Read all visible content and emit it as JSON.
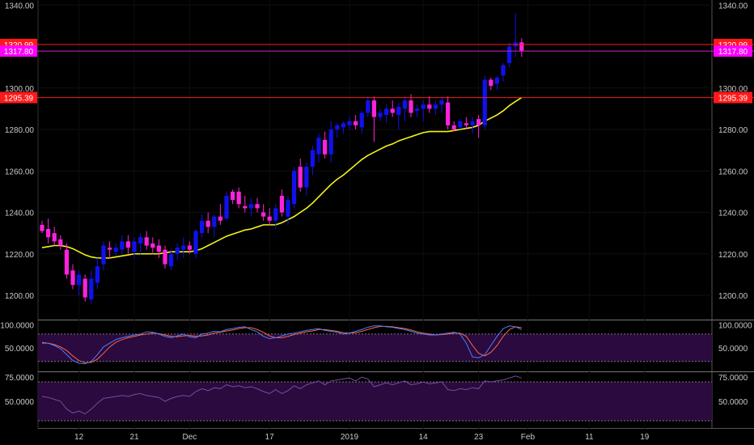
{
  "chart_data": {
    "type": "candlestick",
    "price_axis": {
      "ylim": [
        1185,
        1342
      ],
      "ticks": [
        "1200.00",
        "1220.00",
        "1240.00",
        "1260.00",
        "1280.00",
        "1300.00",
        "1340.00"
      ],
      "tick_values": [
        1200,
        1220,
        1240,
        1260,
        1280,
        1300,
        1340
      ]
    },
    "x_axis": {
      "labels": [
        "12",
        "21",
        "Dec",
        "17",
        "2019",
        "14",
        "23",
        "Feb",
        "11",
        "19"
      ],
      "label_bar_index": [
        6,
        15,
        24,
        37,
        50,
        62,
        71,
        79,
        89,
        98
      ]
    },
    "horizontal_lines": [
      {
        "label": "1320.99",
        "value": 1320.99,
        "color": "#ff1a1a",
        "label_bg": "#ff1a1a"
      },
      {
        "label": "1317.80",
        "value": 1317.8,
        "color": "#cc22cc",
        "label_bg": "#ff00ff"
      },
      {
        "label": "1295.39",
        "value": 1295.39,
        "color": "#ff1a1a",
        "label_bg": "#ff1a1a"
      }
    ],
    "colors": {
      "up": "#1111ee",
      "down": "#ff22dd",
      "moving_average": "#f5f51a",
      "stoch_k": "#4a7fff",
      "stoch_d": "#ff6644",
      "rsi": "#7a4aa0",
      "band_fill": "#2a0a3f"
    },
    "candles": [
      [
        1234,
        1236,
        1230,
        1231
      ],
      [
        1232,
        1237,
        1225,
        1228
      ],
      [
        1230,
        1233,
        1224,
        1226
      ],
      [
        1227,
        1229,
        1222,
        1224
      ],
      [
        1222,
        1225,
        1208,
        1210
      ],
      [
        1212,
        1215,
        1203,
        1205
      ],
      [
        1205,
        1212,
        1200,
        1210
      ],
      [
        1208,
        1210,
        1197,
        1199
      ],
      [
        1198,
        1212,
        1196,
        1208
      ],
      [
        1206,
        1218,
        1203,
        1214
      ],
      [
        1215,
        1226,
        1212,
        1224
      ],
      [
        1223,
        1226,
        1218,
        1222
      ],
      [
        1221,
        1225,
        1219,
        1223
      ],
      [
        1222,
        1229,
        1220,
        1226
      ],
      [
        1226,
        1229,
        1220,
        1223
      ],
      [
        1221,
        1228,
        1218,
        1226
      ],
      [
        1225,
        1230,
        1220,
        1228
      ],
      [
        1228,
        1231,
        1222,
        1224
      ],
      [
        1225,
        1228,
        1220,
        1223
      ],
      [
        1224,
        1227,
        1218,
        1221
      ],
      [
        1222,
        1224,
        1213,
        1215
      ],
      [
        1214,
        1222,
        1212,
        1220
      ],
      [
        1220,
        1225,
        1217,
        1223
      ],
      [
        1222,
        1228,
        1218,
        1224
      ],
      [
        1224,
        1226,
        1220,
        1222
      ],
      [
        1220,
        1232,
        1218,
        1231
      ],
      [
        1230,
        1239,
        1228,
        1236
      ],
      [
        1236,
        1240,
        1230,
        1233
      ],
      [
        1233,
        1239,
        1228,
        1238
      ],
      [
        1238,
        1244,
        1234,
        1236
      ],
      [
        1237,
        1250,
        1236,
        1248
      ],
      [
        1250,
        1251,
        1244,
        1246
      ],
      [
        1250,
        1252,
        1242,
        1244
      ],
      [
        1243,
        1248,
        1240,
        1242
      ],
      [
        1242,
        1247,
        1238,
        1244
      ],
      [
        1244,
        1247,
        1240,
        1242
      ],
      [
        1240,
        1244,
        1236,
        1238
      ],
      [
        1238,
        1242,
        1234,
        1236
      ],
      [
        1236,
        1244,
        1232,
        1242
      ],
      [
        1248,
        1251,
        1238,
        1240
      ],
      [
        1238,
        1248,
        1234,
        1246
      ],
      [
        1244,
        1262,
        1242,
        1260
      ],
      [
        1262,
        1266,
        1250,
        1252
      ],
      [
        1252,
        1264,
        1248,
        1262
      ],
      [
        1262,
        1272,
        1258,
        1270
      ],
      [
        1268,
        1278,
        1264,
        1276
      ],
      [
        1275,
        1279,
        1266,
        1268
      ],
      [
        1268,
        1284,
        1264,
        1280
      ],
      [
        1280,
        1283,
        1276,
        1282
      ],
      [
        1281,
        1284,
        1278,
        1283
      ],
      [
        1282,
        1286,
        1280,
        1284
      ],
      [
        1284,
        1287,
        1280,
        1282
      ],
      [
        1281,
        1289,
        1278,
        1288
      ],
      [
        1288,
        1296,
        1286,
        1294
      ],
      [
        1294,
        1296,
        1274,
        1286
      ],
      [
        1286,
        1290,
        1284,
        1288
      ],
      [
        1287,
        1292,
        1283,
        1290
      ],
      [
        1290,
        1294,
        1286,
        1288
      ],
      [
        1287,
        1293,
        1280,
        1291
      ],
      [
        1290,
        1296,
        1284,
        1294
      ],
      [
        1294,
        1297,
        1286,
        1288
      ],
      [
        1289,
        1292,
        1286,
        1290
      ],
      [
        1290,
        1294,
        1284,
        1292
      ],
      [
        1292,
        1296,
        1288,
        1290
      ],
      [
        1290,
        1294,
        1287,
        1292
      ],
      [
        1292,
        1296,
        1288,
        1294
      ],
      [
        1293,
        1296,
        1280,
        1282
      ],
      [
        1282,
        1284,
        1279,
        1280
      ],
      [
        1281,
        1285,
        1280,
        1284
      ],
      [
        1283,
        1286,
        1280,
        1282
      ],
      [
        1282,
        1286,
        1278,
        1284
      ],
      [
        1285,
        1287,
        1276,
        1282
      ],
      [
        1282,
        1306,
        1280,
        1304
      ],
      [
        1304,
        1305,
        1299,
        1301
      ],
      [
        1302,
        1306,
        1299,
        1305
      ],
      [
        1306,
        1312,
        1303,
        1311
      ],
      [
        1312,
        1322,
        1310,
        1320
      ],
      [
        1320,
        1336,
        1315,
        1322
      ],
      [
        1322,
        1324,
        1315,
        1318
      ]
    ],
    "moving_average": [
      1223,
      1223.5,
      1224,
      1224,
      1223.5,
      1222.5,
      1221,
      1219.5,
      1218.5,
      1218,
      1218,
      1218,
      1218.5,
      1219,
      1219.5,
      1220,
      1220,
      1220,
      1220,
      1220,
      1220.5,
      1221,
      1221,
      1221,
      1221,
      1221.5,
      1222.5,
      1224,
      1225.5,
      1227,
      1228.5,
      1229.5,
      1230.5,
      1231.5,
      1232,
      1233,
      1234,
      1234,
      1234,
      1235,
      1236.5,
      1238,
      1240,
      1242,
      1244.5,
      1247.5,
      1250.5,
      1253.5,
      1256,
      1258,
      1260.5,
      1263,
      1265.5,
      1267.5,
      1269,
      1270.5,
      1272,
      1273,
      1274.5,
      1275.5,
      1276.5,
      1277.5,
      1278.5,
      1279,
      1279,
      1279,
      1279,
      1279.5,
      1280,
      1280.5,
      1281,
      1282,
      1284,
      1285.5,
      1287,
      1289,
      1291.5,
      1293.5,
      1295.4
    ],
    "stochastic": {
      "range": [
        0,
        110
      ],
      "upper_band": 80,
      "lower_band": 20,
      "ticks": [
        "100.0000",
        "50.0000"
      ],
      "tick_values": [
        100,
        50
      ],
      "k": [
        62,
        60,
        55,
        48,
        35,
        22,
        16,
        15,
        20,
        35,
        52,
        60,
        68,
        72,
        75,
        78,
        80,
        85,
        84,
        80,
        75,
        72,
        76,
        80,
        74,
        72,
        80,
        82,
        86,
        85,
        90,
        92,
        95,
        96,
        90,
        85,
        75,
        70,
        72,
        76,
        80,
        82,
        85,
        88,
        90,
        92,
        88,
        86,
        84,
        80,
        82,
        86,
        90,
        95,
        98,
        98,
        96,
        95,
        92,
        90,
        86,
        82,
        80,
        78,
        78,
        80,
        82,
        84,
        80,
        60,
        30,
        28,
        35,
        55,
        75,
        92,
        98,
        96,
        90
      ],
      "d": [
        60,
        60,
        57,
        52,
        44,
        32,
        22,
        17,
        18,
        25,
        38,
        52,
        62,
        68,
        72,
        75,
        78,
        80,
        82,
        81,
        78,
        75,
        74,
        76,
        77,
        75,
        76,
        78,
        82,
        84,
        87,
        89,
        92,
        94,
        94,
        90,
        84,
        76,
        72,
        72,
        75,
        79,
        82,
        85,
        87,
        90,
        90,
        88,
        86,
        83,
        82,
        83,
        86,
        90,
        94,
        97,
        97,
        96,
        94,
        92,
        89,
        85,
        82,
        80,
        78,
        79,
        80,
        82,
        82,
        75,
        55,
        38,
        32,
        40,
        55,
        75,
        90,
        96,
        94
      ]
    },
    "rsi": {
      "range": [
        25,
        80
      ],
      "upper_band": 70,
      "lower_band": 30,
      "ticks": [
        "75.0000",
        "50.0000"
      ],
      "tick_values": [
        75,
        50
      ],
      "values": [
        55,
        54,
        52,
        50,
        42,
        38,
        40,
        37,
        42,
        48,
        53,
        54,
        55,
        56,
        55,
        57,
        58,
        56,
        55,
        54,
        50,
        53,
        55,
        56,
        55,
        60,
        63,
        61,
        64,
        63,
        67,
        65,
        66,
        64,
        65,
        63,
        60,
        58,
        62,
        58,
        61,
        66,
        63,
        67,
        69,
        71,
        67,
        71,
        72,
        73,
        74,
        71,
        75,
        73,
        65,
        67,
        69,
        67,
        69,
        71,
        67,
        68,
        70,
        68,
        69,
        70,
        62,
        61,
        63,
        62,
        64,
        63,
        71,
        70,
        71,
        72,
        74,
        76,
        74
      ]
    }
  }
}
